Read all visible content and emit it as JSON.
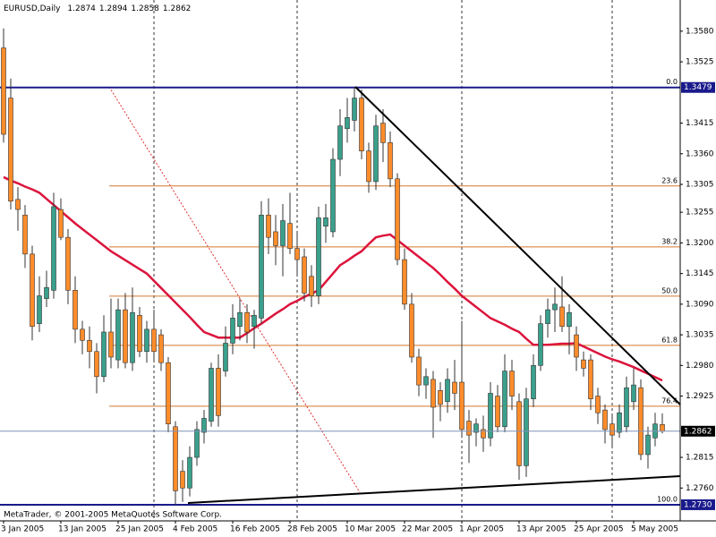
{
  "chart_data": {
    "type": "candlestick",
    "title": "EURUSD,Daily",
    "footer": "MetaTrader, © 2001-2005 MetaQuotes Software Corp.",
    "categories": [
      "3 Jan 2005",
      null,
      null,
      null,
      null,
      null,
      null,
      null,
      "13 Jan 2005",
      null,
      null,
      null,
      null,
      null,
      null,
      null,
      "25 Jan 2005",
      null,
      null,
      null,
      null,
      null,
      null,
      null,
      "4 Feb 2005",
      null,
      null,
      null,
      null,
      null,
      null,
      null,
      "16 Feb 2005",
      null,
      null,
      null,
      null,
      null,
      null,
      null,
      "28 Feb 2005",
      null,
      null,
      null,
      null,
      null,
      null,
      null,
      "10 Mar 2005",
      null,
      null,
      null,
      null,
      null,
      null,
      null,
      "22 Mar 2005",
      null,
      null,
      null,
      null,
      null,
      null,
      null,
      "1 Apr 2005",
      null,
      null,
      null,
      null,
      null,
      null,
      null,
      "13 Apr 2005",
      null,
      null,
      null,
      null,
      null,
      null,
      null,
      "25 Apr 2005",
      null,
      null,
      null,
      null,
      null,
      null,
      null,
      "5 May 2005",
      null,
      null,
      null,
      null
    ],
    "open": [
      1.355,
      1.346,
      1.3278,
      1.325,
      1.318,
      1.3055,
      1.31,
      1.3115,
      1.326,
      1.321,
      1.3115,
      1.3045,
      1.3025,
      1.3005,
      1.296,
      1.304,
      1.299,
      1.308,
      1.2985,
      1.307,
      1.3005,
      1.3045,
      1.3035,
      1.2985,
      1.287,
      1.279,
      1.276,
      1.2815,
      1.286,
      1.288,
      1.2975,
      1.297,
      1.302,
      1.305,
      1.3075,
      1.305,
      1.3065,
      1.325,
      1.322,
      1.3195,
      1.3235,
      1.319,
      1.3175,
      1.314,
      1.3105,
      1.323,
      1.322,
      1.335,
      1.3405,
      1.342,
      1.346,
      1.3365,
      1.331,
      1.3415,
      1.338,
      1.3315,
      1.317,
      1.309,
      1.2995,
      1.2945,
      1.2955,
      1.2935,
      1.2915,
      1.295,
      1.295,
      1.288,
      1.286,
      1.2865,
      1.285,
      1.2925,
      1.287,
      1.297,
      1.2915,
      1.28,
      1.292,
      1.298,
      1.3055,
      1.308,
      1.3085,
      1.305,
      1.3035,
      1.299,
      1.299,
      1.2925,
      1.29,
      1.2875,
      1.286,
      1.287,
      1.2915,
      1.294,
      1.282,
      1.285,
      1.2874
    ],
    "high": [
      1.3585,
      1.3495,
      1.33,
      1.3268,
      1.3195,
      1.314,
      1.315,
      1.329,
      1.328,
      1.3225,
      1.314,
      1.306,
      1.305,
      1.302,
      1.307,
      1.31,
      1.31,
      1.311,
      1.312,
      1.3085,
      1.306,
      1.308,
      1.3045,
      1.2995,
      1.288,
      1.281,
      1.2835,
      1.288,
      1.29,
      1.2985,
      1.3,
      1.305,
      1.309,
      1.31,
      1.309,
      1.308,
      1.3275,
      1.328,
      1.325,
      1.327,
      1.329,
      1.322,
      1.319,
      1.316,
      1.3265,
      1.327,
      1.337,
      1.344,
      1.346,
      1.3479,
      1.3475,
      1.338,
      1.343,
      1.344,
      1.34,
      1.3325,
      1.319,
      1.311,
      1.301,
      1.2975,
      1.297,
      1.295,
      1.2975,
      1.299,
      1.306,
      1.29,
      1.2885,
      1.289,
      1.295,
      1.2945,
      1.3,
      1.299,
      1.293,
      1.294,
      1.3,
      1.307,
      1.31,
      1.312,
      1.314,
      1.309,
      1.305,
      1.3005,
      1.3,
      1.294,
      1.291,
      1.289,
      1.291,
      1.296,
      1.2975,
      1.2955,
      1.287,
      1.2895,
      1.2894
    ],
    "low": [
      1.338,
      1.326,
      1.3222,
      1.3155,
      1.3025,
      1.304,
      1.3085,
      1.31,
      1.3205,
      1.309,
      1.302,
      1.3,
      1.2975,
      1.293,
      1.295,
      1.2975,
      1.2975,
      1.2975,
      1.297,
      1.2995,
      1.2985,
      1.299,
      1.297,
      1.286,
      1.273,
      1.2735,
      1.2745,
      1.28,
      1.284,
      1.287,
      1.287,
      1.296,
      1.3,
      1.3025,
      1.302,
      1.301,
      1.3055,
      1.318,
      1.316,
      1.314,
      1.318,
      1.314,
      1.3095,
      1.3085,
      1.309,
      1.32,
      1.321,
      1.332,
      1.338,
      1.34,
      1.335,
      1.329,
      1.3295,
      1.3345,
      1.33,
      1.316,
      1.308,
      1.2985,
      1.2925,
      1.292,
      1.285,
      1.288,
      1.2895,
      1.29,
      1.285,
      1.2805,
      1.2835,
      1.2825,
      1.2835,
      1.286,
      1.286,
      1.29,
      1.2775,
      1.278,
      1.2905,
      1.297,
      1.303,
      1.304,
      1.304,
      1.3,
      1.297,
      1.296,
      1.29,
      1.2875,
      1.284,
      1.2835,
      1.285,
      1.286,
      1.29,
      1.281,
      1.2795,
      1.2835,
      1.2858
    ],
    "close": [
      1.3395,
      1.3275,
      1.326,
      1.318,
      1.305,
      1.3105,
      1.312,
      1.3265,
      1.321,
      1.3115,
      1.3045,
      1.3025,
      1.3005,
      1.296,
      1.304,
      1.2995,
      1.308,
      1.2985,
      1.3075,
      1.3005,
      1.3045,
      1.3005,
      1.2985,
      1.2875,
      1.2755,
      1.276,
      1.2815,
      1.2865,
      1.2885,
      1.2975,
      1.289,
      1.302,
      1.3065,
      1.3075,
      1.304,
      1.307,
      1.325,
      1.321,
      1.3195,
      1.324,
      1.319,
      1.317,
      1.311,
      1.3105,
      1.3245,
      1.3245,
      1.335,
      1.341,
      1.3425,
      1.346,
      1.3365,
      1.331,
      1.341,
      1.338,
      1.3315,
      1.317,
      1.309,
      1.2995,
      1.2945,
      1.296,
      1.2905,
      1.291,
      1.2955,
      1.293,
      1.2865,
      1.2855,
      1.2875,
      1.285,
      1.293,
      1.287,
      1.297,
      1.2925,
      1.28,
      1.292,
      1.298,
      1.3055,
      1.308,
      1.309,
      1.305,
      1.3075,
      1.2995,
      1.2975,
      1.292,
      1.2895,
      1.2865,
      1.2855,
      1.2895,
      1.294,
      1.2945,
      1.282,
      1.2855,
      1.2875,
      1.2862
    ],
    "ma": {
      "color": "#dc143c",
      "values": [
        1.3318,
        1.3312,
        1.3307,
        1.3301,
        1.3296,
        1.329,
        1.3279,
        1.3268,
        1.3257,
        1.3246,
        1.3235,
        1.3225,
        1.3215,
        1.3205,
        1.3195,
        1.3185,
        1.3177,
        1.3169,
        1.3161,
        1.3153,
        1.3145,
        1.3132,
        1.3119,
        1.3106,
        1.3093,
        1.308,
        1.3067,
        1.3053,
        1.304,
        1.3035,
        1.303,
        1.303,
        1.303,
        1.303,
        1.3038,
        1.3047,
        1.3055,
        1.3064,
        1.3073,
        1.3081,
        1.309,
        1.3096,
        1.3103,
        1.3109,
        1.3115,
        1.313,
        1.3145,
        1.316,
        1.3168,
        1.3177,
        1.3185,
        1.3198,
        1.321,
        1.3213,
        1.3215,
        1.3205,
        1.3195,
        1.3185,
        1.3175,
        1.3165,
        1.3155,
        1.3143,
        1.313,
        1.3118,
        1.3105,
        1.3095,
        1.3085,
        1.3075,
        1.3065,
        1.3059,
        1.3053,
        1.3046,
        1.304,
        1.3028,
        1.3017,
        1.3017,
        1.3017,
        1.3018,
        1.3019,
        1.3019,
        1.302,
        1.3014,
        1.3008,
        1.3002,
        1.2996,
        1.2991,
        1.2987,
        1.2982,
        1.2977,
        1.2971,
        1.2965,
        1.2959,
        1.2953
      ]
    },
    "bull_color": "#3aa08c",
    "bear_color": "#ff8c2a",
    "level_color": "#1a1a8c",
    "fib_color": "#d2782e",
    "horizontal_lines": [
      1.3479,
      {
        "value": 1.273,
        "label": "1.2730"
      }
    ],
    "fib_levels": [
      {
        "value": 0,
        "label": "0.0"
      },
      23.6,
      38.2,
      {
        "value": 50,
        "label": "50.0"
      },
      61.8,
      76.4,
      {
        "value": 100,
        "label": "100.0"
      }
    ],
    "ylim": [
      1.2701,
      1.3636
    ],
    "yticks": [
      {
        "value": 1.358,
        "label": "1.3580"
      },
      1.3525,
      1.3415,
      {
        "value": 1.336,
        "label": "1.3360"
      },
      1.3305,
      1.3255,
      {
        "value": 1.32,
        "label": "1.3200"
      },
      1.3145,
      {
        "value": 1.309,
        "label": "1.3090"
      },
      1.3035,
      {
        "value": 1.298,
        "label": "1.2980"
      },
      1.2925,
      1.2815,
      {
        "value": 1.276,
        "label": "1.2760"
      }
    ]
  }
}
